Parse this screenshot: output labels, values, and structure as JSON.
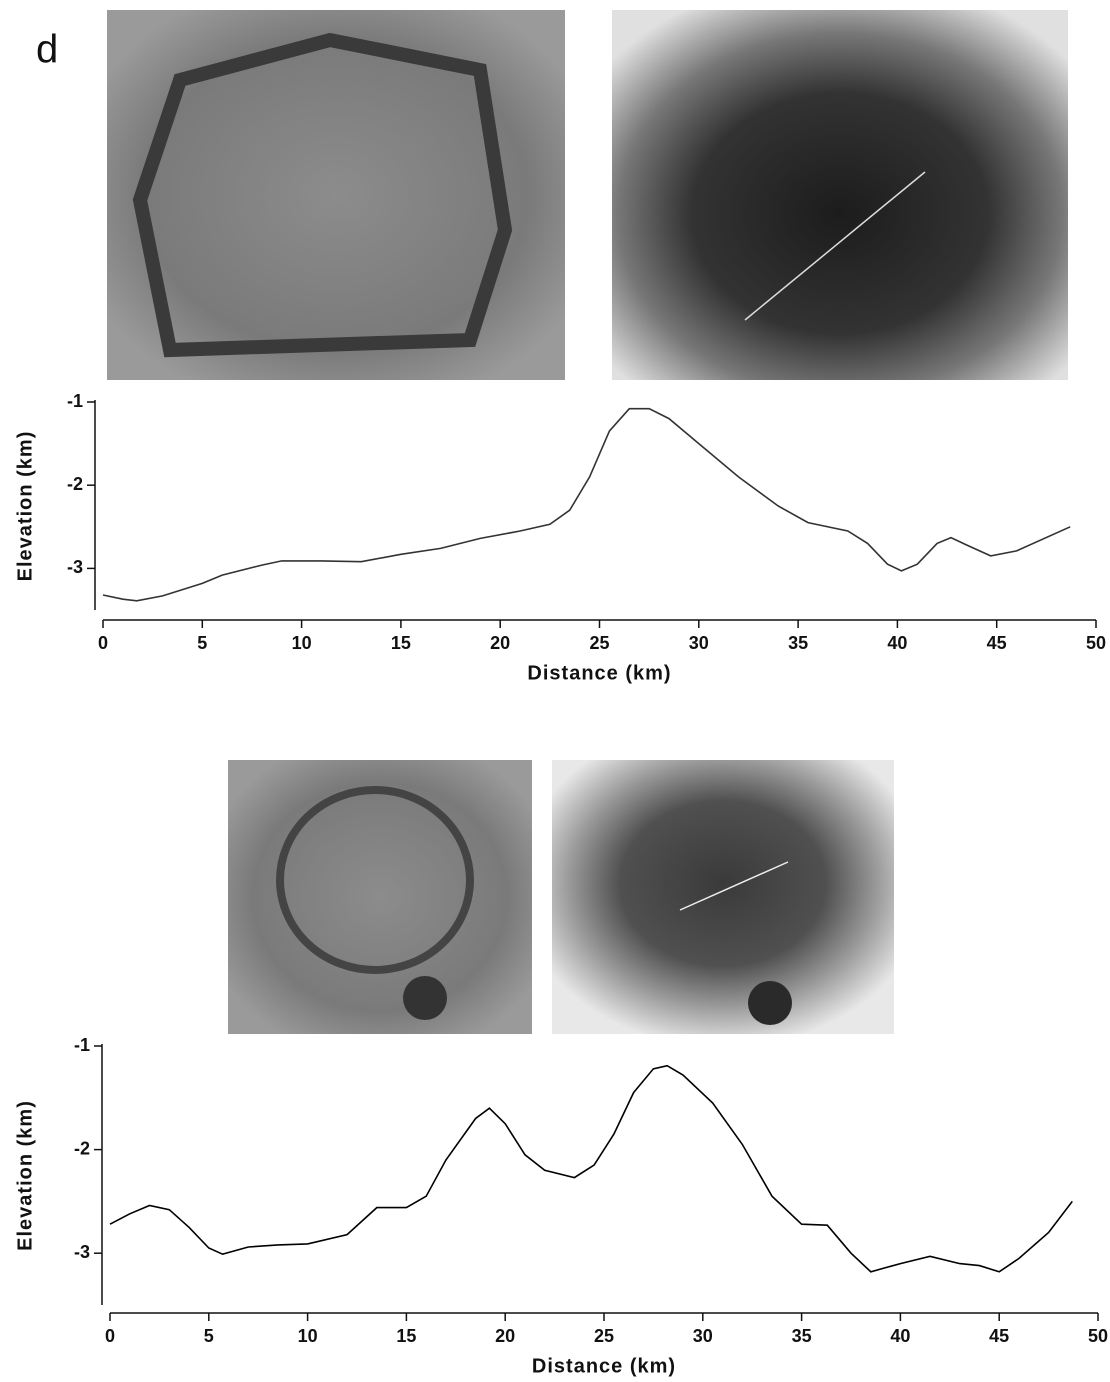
{
  "panel_label": "d",
  "chart_data": [
    {
      "type": "line",
      "xlabel": "Distance (km)",
      "ylabel": "Elevation (km)",
      "xlim": [
        0,
        50
      ],
      "ylim": [
        -3.5,
        -1
      ],
      "xticks": [
        0,
        5,
        10,
        15,
        20,
        25,
        30,
        35,
        40,
        45,
        50
      ],
      "yticks": [
        -1,
        -2,
        -3
      ],
      "color": "#333333",
      "x": [
        0,
        1,
        1.7,
        3,
        5,
        6,
        8,
        9,
        11,
        13,
        15,
        17,
        19,
        21,
        22.5,
        23.5,
        24.5,
        25.5,
        26.5,
        27.5,
        28.5,
        30,
        32,
        34,
        35.5,
        37.5,
        38.5,
        39.5,
        40.2,
        41,
        42,
        42.7,
        43.5,
        44.7,
        46,
        48.7
      ],
      "values": [
        -3.32,
        -3.37,
        -3.39,
        -3.33,
        -3.18,
        -3.08,
        -2.96,
        -2.91,
        -2.91,
        -2.92,
        -2.83,
        -2.76,
        -2.64,
        -2.55,
        -2.47,
        -2.3,
        -1.9,
        -1.35,
        -1.08,
        -1.08,
        -1.2,
        -1.5,
        -1.9,
        -2.25,
        -2.45,
        -2.55,
        -2.7,
        -2.95,
        -3.03,
        -2.95,
        -2.7,
        -2.63,
        -2.72,
        -2.85,
        -2.79,
        -2.5
      ]
    },
    {
      "type": "line",
      "xlabel": "Distance (km)",
      "ylabel": "Elevation (km)",
      "xlim": [
        0,
        50
      ],
      "ylim": [
        -3.5,
        -1
      ],
      "xticks": [
        0,
        5,
        10,
        15,
        20,
        25,
        30,
        35,
        40,
        45,
        50
      ],
      "yticks": [
        -1,
        -2,
        -3
      ],
      "color": "#000000",
      "x": [
        0,
        1,
        2,
        3,
        4,
        5,
        5.7,
        7,
        8.5,
        10,
        12,
        13.5,
        15,
        16,
        17,
        18.5,
        19.2,
        20,
        21,
        22,
        23.5,
        24.5,
        25.5,
        26.5,
        27.5,
        28.2,
        29,
        30.5,
        32,
        33.5,
        35,
        36.3,
        37.5,
        38.5,
        40,
        41.5,
        43,
        44,
        45,
        46,
        47.5,
        48.7
      ],
      "values": [
        -2.72,
        -2.62,
        -2.54,
        -2.58,
        -2.75,
        -2.95,
        -3.01,
        -2.94,
        -2.92,
        -2.91,
        -2.82,
        -2.56,
        -2.56,
        -2.45,
        -2.1,
        -1.7,
        -1.6,
        -1.75,
        -2.05,
        -2.2,
        -2.27,
        -2.15,
        -1.85,
        -1.45,
        -1.22,
        -1.19,
        -1.28,
        -1.55,
        -1.95,
        -2.45,
        -2.72,
        -2.73,
        -3.0,
        -3.18,
        -3.1,
        -3.03,
        -3.1,
        -3.12,
        -3.18,
        -3.05,
        -2.8,
        -2.5
      ]
    }
  ]
}
